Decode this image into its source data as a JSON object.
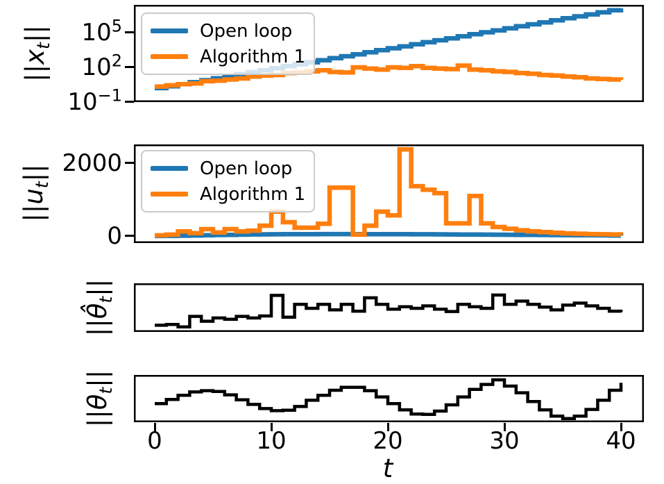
{
  "figure": {
    "kind": "matplotlib-style stacked step plots",
    "background": "#ffffff"
  },
  "colors": {
    "open_loop": "#1f77b4",
    "algorithm1": "#ff7f0e",
    "black_line": "#000000",
    "spine": "#000000",
    "legend_border": "#cbcbcb"
  },
  "legend": {
    "items": [
      {
        "label": "Open loop",
        "color": "#1f77b4"
      },
      {
        "label": "Algorithm 1",
        "color": "#ff7f0e"
      }
    ]
  },
  "axes": {
    "xlabel": "t",
    "x_tick_labels": [
      "0",
      "10",
      "20",
      "30",
      "40"
    ],
    "x_tick_values": [
      0,
      10,
      20,
      30,
      40
    ],
    "plot1_y_ticks": [
      {
        "base": "10",
        "exp": "5"
      },
      {
        "base": "10",
        "exp": "2"
      },
      {
        "base": "10",
        "exp": "−1"
      }
    ],
    "plot2_y_ticks": [
      "2000",
      "0"
    ]
  },
  "ylabels": [
    {
      "pre": "||",
      "var": "x",
      "sub": "t",
      "post": "||"
    },
    {
      "pre": "||",
      "var": "u",
      "sub": "t",
      "post": "||"
    },
    {
      "pre": "||",
      "var": "θ̂",
      "sub": "t",
      "post": "||"
    },
    {
      "pre": "||",
      "var": "θ",
      "sub": "t",
      "post": "||"
    }
  ],
  "chart_data": [
    {
      "type": "line",
      "step": true,
      "yscale": "log",
      "ylabel": "||x_t||",
      "x_start": 0,
      "x_step": 1,
      "xlim": [
        -1.8,
        42
      ],
      "ylim": [
        "1e-1.6",
        "1e7.4"
      ],
      "y_tick_labels": [
        "1e5",
        "1e2",
        "1e-1"
      ],
      "legend_position": "upper left",
      "grid": false,
      "series": [
        {
          "name": "Open loop",
          "color": "#1f77b4",
          "values": [
            1.6,
            2.3,
            3.5,
            5.2,
            7.8,
            11.5,
            17,
            26,
            38,
            56,
            85,
            126,
            186,
            275,
            417,
            617,
            912,
            1350,
            2040,
            3020,
            4470,
            6610,
            10000,
            14800,
            21900,
            32400,
            49000,
            72400,
            107000,
            158000,
            240000,
            355000,
            525000,
            776000,
            1170000,
            1740000,
            2570000,
            3800000,
            5750000,
            8510000,
            12600000
          ]
        },
        {
          "name": "Algorithm 1",
          "color": "#ff7f0e",
          "values": [
            2.2,
            2.8,
            3.5,
            4,
            6.3,
            7.1,
            8.9,
            11,
            16,
            20,
            22,
            32,
            36,
            45,
            56,
            40,
            36,
            100,
            79,
            63,
            100,
            89,
            126,
            89,
            79,
            71,
            141,
            63,
            56,
            45,
            40,
            32,
            28,
            22,
            20,
            16,
            14,
            11,
            10,
            8.9,
            8.3
          ]
        }
      ]
    },
    {
      "type": "line",
      "step": true,
      "yscale": "linear",
      "ylabel": "||u_t||",
      "x_start": 0,
      "x_step": 1,
      "xlim": [
        -1.8,
        42
      ],
      "ylim": [
        -190,
        2510
      ],
      "y_tick_labels": [
        "0",
        "2000"
      ],
      "legend_position": "upper left",
      "grid": false,
      "series": [
        {
          "name": "Open loop",
          "color": "#1f77b4",
          "values": [
            5,
            8,
            12,
            18,
            25,
            30,
            35,
            40,
            45,
            48,
            50,
            52,
            53,
            54,
            55,
            55,
            55,
            54,
            54,
            53,
            52,
            51,
            50,
            49,
            48,
            46,
            44,
            42,
            40,
            38,
            36,
            34,
            32,
            30,
            28,
            26,
            24,
            22,
            20,
            18,
            16
          ]
        },
        {
          "name": "Algorithm 1",
          "color": "#ff7f0e",
          "values": [
            20,
            40,
            130,
            80,
            190,
            100,
            190,
            130,
            150,
            285,
            670,
            380,
            230,
            230,
            340,
            1330,
            1330,
            40,
            285,
            670,
            570,
            2380,
            1370,
            1270,
            1180,
            350,
            350,
            1100,
            350,
            250,
            200,
            160,
            130,
            110,
            90,
            75,
            65,
            55,
            50,
            45,
            40
          ]
        }
      ]
    },
    {
      "type": "line",
      "step": true,
      "yscale": "linear",
      "ylabel": "||θ̂_t||",
      "x_start": 0,
      "x_step": 1,
      "xlim": [
        -1.8,
        42
      ],
      "y_axis": "unlabeled (values normalized 0-1)",
      "grid": false,
      "series": [
        {
          "name": "theta-hat",
          "color": "#000000",
          "values": [
            0.08,
            0.1,
            0.04,
            0.3,
            0.18,
            0.26,
            0.23,
            0.3,
            0.26,
            0.31,
            0.82,
            0.28,
            0.6,
            0.5,
            0.6,
            0.46,
            0.6,
            0.43,
            0.76,
            0.6,
            0.48,
            0.54,
            0.5,
            0.56,
            0.48,
            0.42,
            0.6,
            0.54,
            0.5,
            0.83,
            0.6,
            0.68,
            0.6,
            0.53,
            0.46,
            0.58,
            0.63,
            0.56,
            0.5,
            0.43,
            0.4
          ]
        }
      ]
    },
    {
      "type": "line",
      "step": true,
      "yscale": "linear",
      "ylabel": "||θ_t||",
      "x_start": 0,
      "x_step": 1,
      "xlim": [
        -1.8,
        42
      ],
      "y_axis": "unlabeled (values normalized 0-1)",
      "grid": false,
      "series": [
        {
          "name": "theta",
          "color": "#000000",
          "values": [
            0.38,
            0.48,
            0.58,
            0.66,
            0.69,
            0.67,
            0.59,
            0.47,
            0.36,
            0.26,
            0.21,
            0.22,
            0.31,
            0.46,
            0.58,
            0.7,
            0.77,
            0.77,
            0.69,
            0.54,
            0.38,
            0.23,
            0.13,
            0.12,
            0.2,
            0.35,
            0.54,
            0.72,
            0.84,
            0.95,
            0.8,
            0.64,
            0.43,
            0.23,
            0.08,
            0.02,
            0.08,
            0.24,
            0.46,
            0.7,
            0.88
          ]
        }
      ]
    }
  ]
}
